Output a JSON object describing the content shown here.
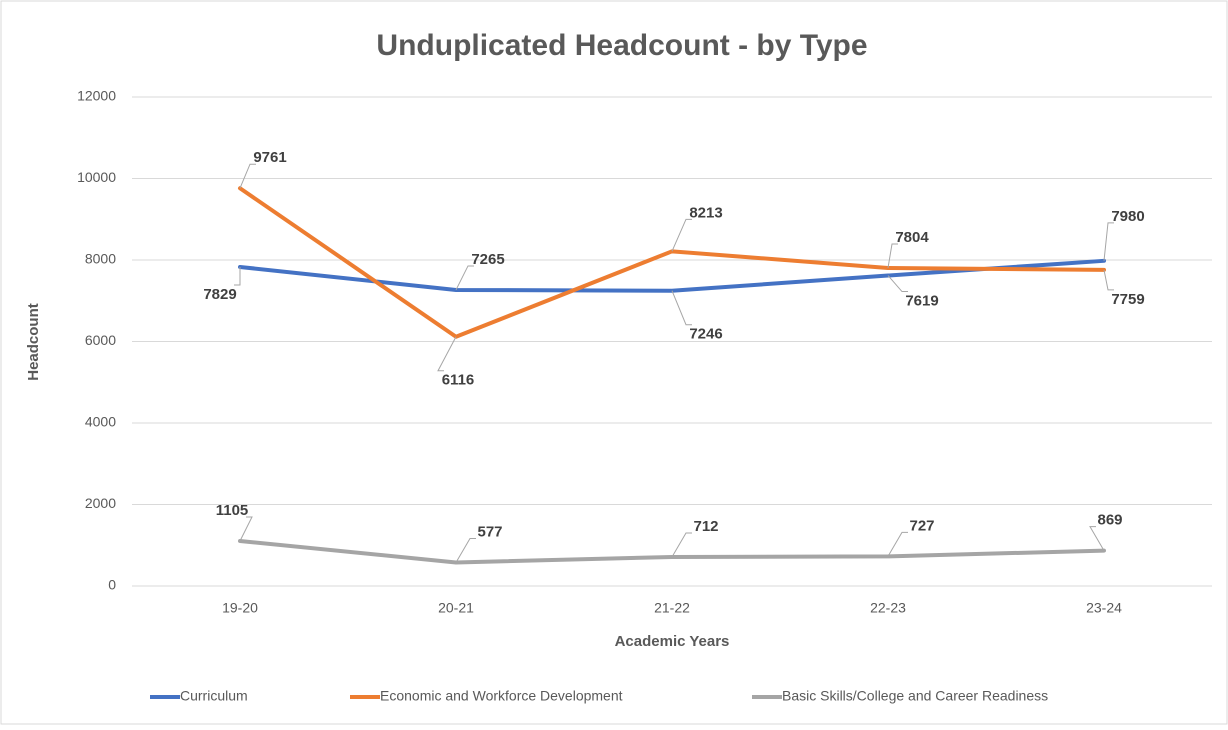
{
  "chart_data": {
    "type": "line",
    "title": "Unduplicated Headcount - by Type",
    "x_label": "Academic Years",
    "y_label": "Headcount",
    "categories": [
      "19-20",
      "20-21",
      "21-22",
      "22-23",
      "23-24"
    ],
    "series": [
      {
        "name": "Curriculum",
        "color": "#4472c4",
        "values": [
          7829,
          7265,
          7246,
          7619,
          7980
        ]
      },
      {
        "name": "Economic and Workforce Development",
        "color": "#ed7d31",
        "values": [
          9761,
          6116,
          8213,
          7804,
          7759
        ]
      },
      {
        "name": "Basic Skills/College and Career Readiness",
        "color": "#a5a5a5",
        "values": [
          1105,
          577,
          712,
          727,
          869
        ]
      }
    ],
    "ylim": [
      0,
      12000
    ],
    "yticks": [
      0,
      2000,
      4000,
      6000,
      8000,
      10000,
      12000
    ],
    "grid": true,
    "legend": "bottom"
  }
}
